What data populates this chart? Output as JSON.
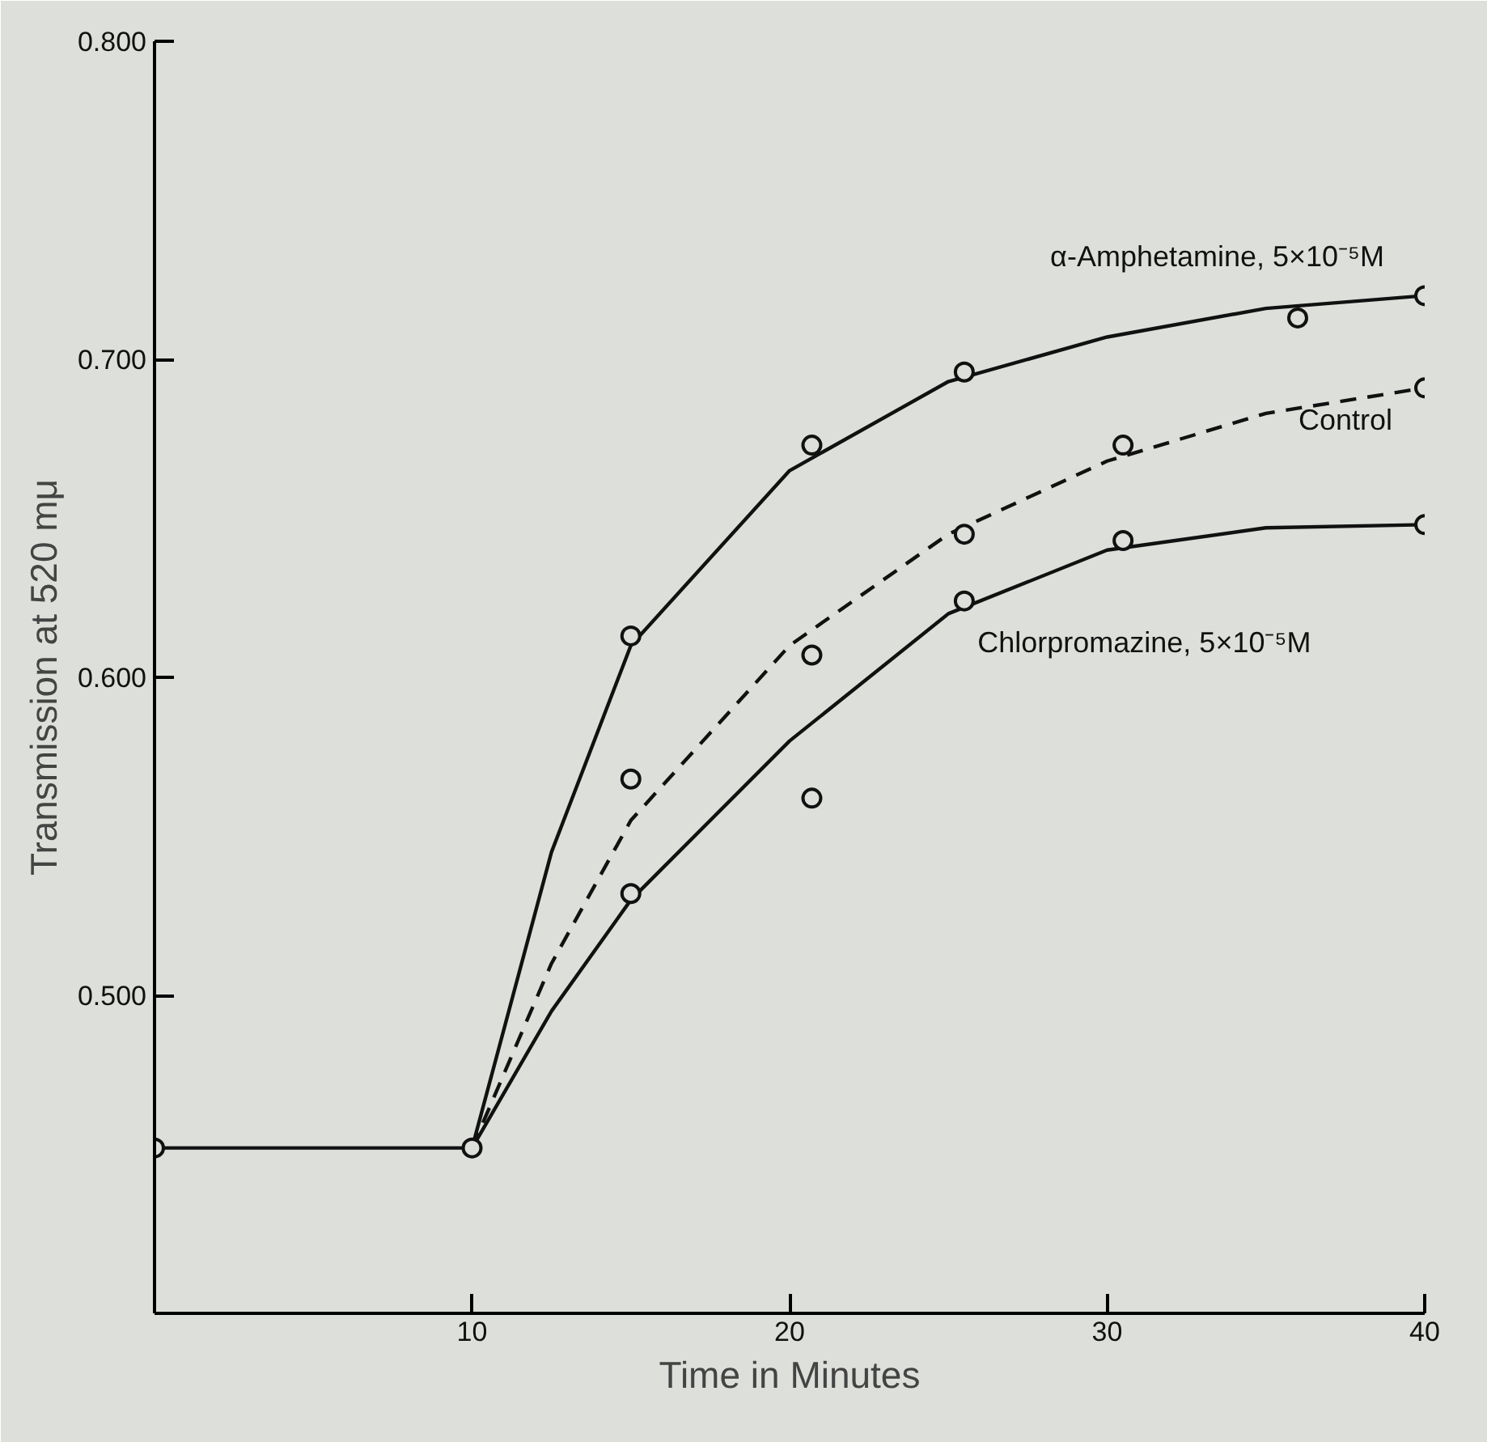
{
  "chart_data": {
    "type": "line",
    "xlabel": "Time in Minutes",
    "ylabel": "Transmission at 520 mμ",
    "xlim": [
      0,
      40
    ],
    "ylim": [
      0.4,
      0.8
    ],
    "xticks": [
      10,
      20,
      30,
      40
    ],
    "yticks": [
      {
        "value": 0.5,
        "label": "0.500"
      },
      {
        "value": 0.6,
        "label": "0.600"
      },
      {
        "value": 0.7,
        "label": "0.700"
      },
      {
        "value": 0.8,
        "label": "0.800"
      }
    ],
    "grid": false,
    "marker": "circle",
    "series": [
      {
        "color": "#111111",
        "line_style": "solid",
        "marker": "none",
        "x": [
          0,
          10
        ],
        "values": [
          0.452,
          0.452
        ]
      },
      {
        "name": "α-Amphetamine, 5×10⁻⁵M",
        "color": "#111111",
        "marker": "none",
        "line_style": "solid",
        "x": [
          10,
          12.5,
          15,
          20,
          25,
          30,
          35,
          40
        ],
        "values": [
          0.452,
          0.545,
          0.61,
          0.665,
          0.693,
          0.707,
          0.716,
          0.72
        ]
      },
      {
        "name": "Control",
        "color": "#111111",
        "marker": "none",
        "line_style": "dashed",
        "x": [
          10,
          12.5,
          15,
          20,
          25,
          30,
          35,
          40
        ],
        "values": [
          0.452,
          0.51,
          0.555,
          0.61,
          0.645,
          0.668,
          0.683,
          0.691
        ]
      },
      {
        "name": "Chlorpromazine, 5×10⁻⁵M",
        "color": "#111111",
        "marker": "none",
        "line_style": "solid",
        "x": [
          10,
          12.5,
          15,
          20,
          25,
          30,
          35,
          40
        ],
        "values": [
          0.452,
          0.495,
          0.53,
          0.58,
          0.62,
          0.64,
          0.647,
          0.648
        ]
      },
      {
        "type": "scatter",
        "color": "#111111",
        "x": [
          0,
          10
        ],
        "values": [
          0.452,
          0.452
        ]
      },
      {
        "type": "scatter",
        "color": "#111111",
        "x": [
          15,
          20.7,
          25.5,
          36,
          40
        ],
        "values": [
          0.613,
          0.673,
          0.696,
          0.713,
          0.72
        ]
      },
      {
        "type": "scatter",
        "color": "#111111",
        "x": [
          15,
          20.7,
          25.5,
          30.5,
          40
        ],
        "values": [
          0.568,
          0.607,
          0.645,
          0.673,
          0.691
        ]
      },
      {
        "type": "scatter",
        "color": "#111111",
        "x": [
          15,
          20.7,
          25.5,
          30.5,
          40
        ],
        "values": [
          0.532,
          0.562,
          0.624,
          0.643,
          0.648
        ]
      }
    ]
  }
}
